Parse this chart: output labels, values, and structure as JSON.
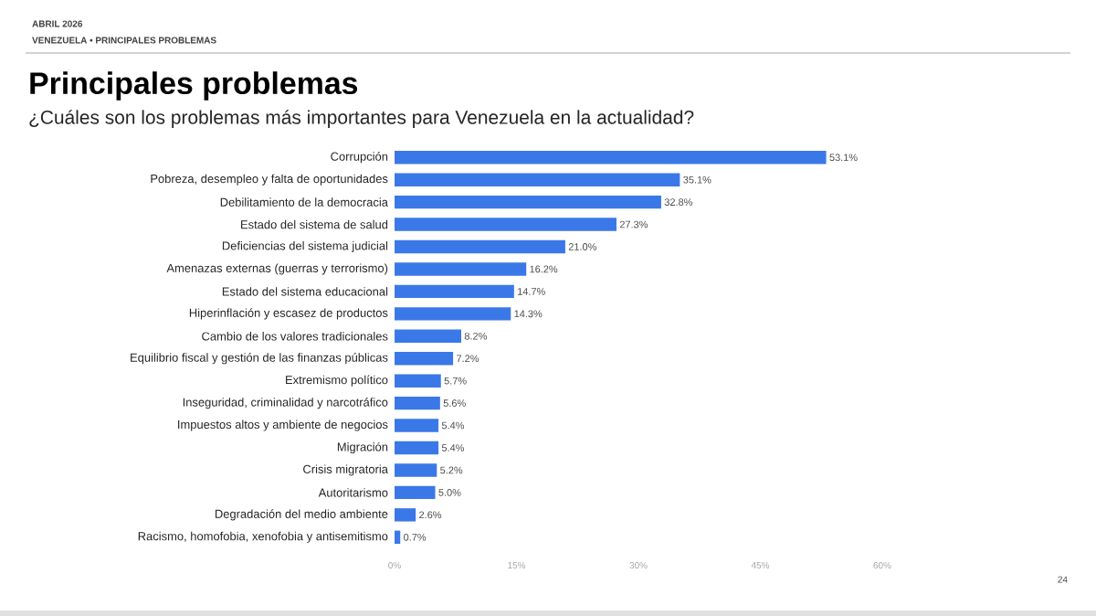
{
  "chart_data": {
    "type": "bar",
    "orientation": "horizontal",
    "title": "Principales problemas",
    "subtitle": "¿Cuáles son los problemas más importantes para Venezuela en la actualidad?",
    "categories": [
      "Corrupción",
      "Pobreza, desempleo y falta de oportunidades",
      "Debilitamiento de la democracia",
      "Estado del sistema de salud",
      "Deficiencias del sistema judicial",
      "Amenazas externas (guerras y terrorismo)",
      "Estado del sistema educacional",
      "Hiperinflación y escasez de productos",
      "Cambio de los valores tradicionales",
      "Equilibrio fiscal y gestión de las finanzas públicas",
      "Extremismo político",
      "Inseguridad, criminalidad y narcotráfico",
      "Impuestos altos y ambiente de negocios",
      "Migración",
      "Crisis migratoria",
      "Autoritarismo",
      "Degradación del medio ambiente",
      "Racismo, homofobia, xenofobia y antisemitismo"
    ],
    "values": [
      53.1,
      35.1,
      32.8,
      27.3,
      21.0,
      16.2,
      14.7,
      14.3,
      8.2,
      7.2,
      5.7,
      5.6,
      5.4,
      5.4,
      5.2,
      5.0,
      2.6,
      0.7
    ],
    "value_labels": [
      "53.1%",
      "35.1%",
      "32.8%",
      "27.3%",
      "21.0%",
      "16.2%",
      "14.7%",
      "14.3%",
      "8.2%",
      "7.2%",
      "5.7%",
      "5.6%",
      "5.4%",
      "5.4%",
      "5.2%",
      "5.0%",
      "2.6%",
      "0.7%"
    ],
    "color": "#3b78e7",
    "xlim": [
      0,
      60
    ],
    "xticks": [
      {
        "value": 0,
        "label": "0%"
      },
      {
        "value": 15,
        "label": "15%"
      },
      {
        "value": 30,
        "label": "30%"
      },
      {
        "value": 45,
        "label": "45%"
      },
      {
        "value": 60,
        "label": "60%"
      }
    ],
    "grid": false,
    "annotations": [
      "ABRIL 2026",
      "VENEZUELA • PRINCIPALES PROBLEMAS",
      "24"
    ]
  }
}
